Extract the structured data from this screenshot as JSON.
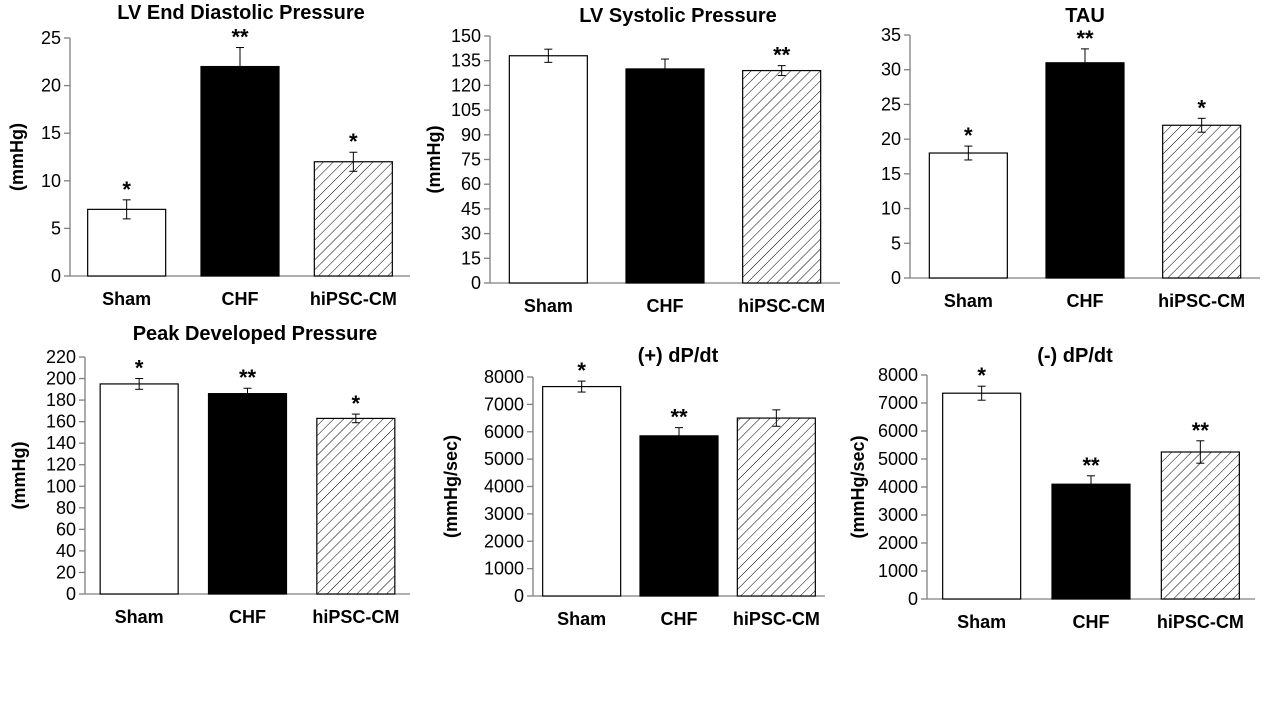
{
  "colors": {
    "axis": "#808080",
    "text": "#000000",
    "bar_border": "#000000",
    "hatch": "#000000"
  },
  "chart_data": [
    {
      "type": "bar",
      "title": "LV End Diastolic Pressure",
      "ylabel": "(mmHg)",
      "categories": [
        "Sham",
        "CHF",
        "hiPSC-CM"
      ],
      "values": [
        7,
        22,
        12
      ],
      "errors": [
        1,
        2,
        1
      ],
      "significance": [
        "*",
        "**",
        "*"
      ],
      "fills": [
        "white",
        "black",
        "hatched"
      ],
      "ylim": [
        0,
        25
      ],
      "yticks": [
        0,
        5,
        10,
        15,
        20,
        25
      ],
      "ytick_labels": [
        "0",
        "5",
        "10",
        "15",
        "20",
        "25"
      ]
    },
    {
      "type": "bar",
      "title": "LV Systolic Pressure",
      "ylabel": "(mmHg)",
      "categories": [
        "Sham",
        "CHF",
        "hiPSC-CM"
      ],
      "values": [
        138,
        130,
        129
      ],
      "errors": [
        4,
        6,
        3
      ],
      "significance": [
        "",
        "",
        "**"
      ],
      "fills": [
        "white",
        "black",
        "hatched"
      ],
      "ylim": [
        0,
        150
      ],
      "yticks": [
        0,
        15,
        30,
        45,
        60,
        75,
        90,
        105,
        120,
        135,
        150
      ],
      "ytick_labels": [
        "0",
        "15",
        "30",
        "45",
        "60",
        "75",
        "90",
        "105",
        "120",
        "135",
        "150"
      ]
    },
    {
      "type": "bar",
      "title": "TAU",
      "ylabel": "",
      "categories": [
        "Sham",
        "CHF",
        "hiPSC-CM"
      ],
      "values": [
        18,
        31,
        22
      ],
      "errors": [
        1,
        2,
        1
      ],
      "significance": [
        "*",
        "**",
        "*"
      ],
      "fills": [
        "white",
        "black",
        "hatched"
      ],
      "ylim": [
        0,
        35
      ],
      "yticks": [
        0,
        5,
        10,
        15,
        20,
        25,
        30,
        35
      ],
      "ytick_labels": [
        "0",
        "5",
        "10",
        "15",
        "20",
        "25",
        "30",
        "35"
      ]
    },
    {
      "type": "bar",
      "title": "Peak Developed Pressure",
      "ylabel": "(mmHg)",
      "categories": [
        "Sham",
        "CHF",
        "hiPSC-CM"
      ],
      "values": [
        195,
        186,
        163
      ],
      "errors": [
        5,
        5,
        4
      ],
      "significance": [
        "*",
        "**",
        "*"
      ],
      "fills": [
        "white",
        "black",
        "hatched"
      ],
      "ylim": [
        0,
        220
      ],
      "yticks": [
        0,
        20,
        40,
        60,
        80,
        100,
        120,
        140,
        160,
        180,
        200,
        220
      ],
      "ytick_labels": [
        "0",
        "20",
        "40",
        "60",
        "80",
        "100",
        "120",
        "140",
        "160",
        "180",
        "200",
        "220"
      ]
    },
    {
      "type": "bar",
      "title": "(+) dP/dt",
      "ylabel": "(mmHg/sec)",
      "categories": [
        "Sham",
        "CHF",
        "hiPSC-CM"
      ],
      "values": [
        7650,
        5850,
        6500
      ],
      "errors": [
        200,
        300,
        300
      ],
      "significance": [
        "*",
        "**",
        ""
      ],
      "fills": [
        "white",
        "black",
        "hatched"
      ],
      "ylim": [
        0,
        8000
      ],
      "yticks": [
        0,
        1000,
        2000,
        3000,
        4000,
        5000,
        6000,
        7000,
        8000
      ],
      "ytick_labels": [
        "0",
        "1000",
        "2000",
        "3000",
        "4000",
        "5000",
        "6000",
        "7000",
        "8000"
      ]
    },
    {
      "type": "bar",
      "title": "(-) dP/dt",
      "ylabel": "(mmHg/sec)",
      "categories": [
        "Sham",
        "CHF",
        "hiPSC-CM"
      ],
      "values": [
        7350,
        4100,
        5250
      ],
      "errors": [
        250,
        300,
        400
      ],
      "significance": [
        "*",
        "**",
        "**"
      ],
      "fills": [
        "white",
        "black",
        "hatched"
      ],
      "ylim": [
        0,
        8000
      ],
      "yticks": [
        0,
        1000,
        2000,
        3000,
        4000,
        5000,
        6000,
        7000,
        8000
      ],
      "ytick_labels": [
        "0",
        "1000",
        "2000",
        "3000",
        "4000",
        "5000",
        "6000",
        "7000",
        "8000"
      ]
    }
  ]
}
